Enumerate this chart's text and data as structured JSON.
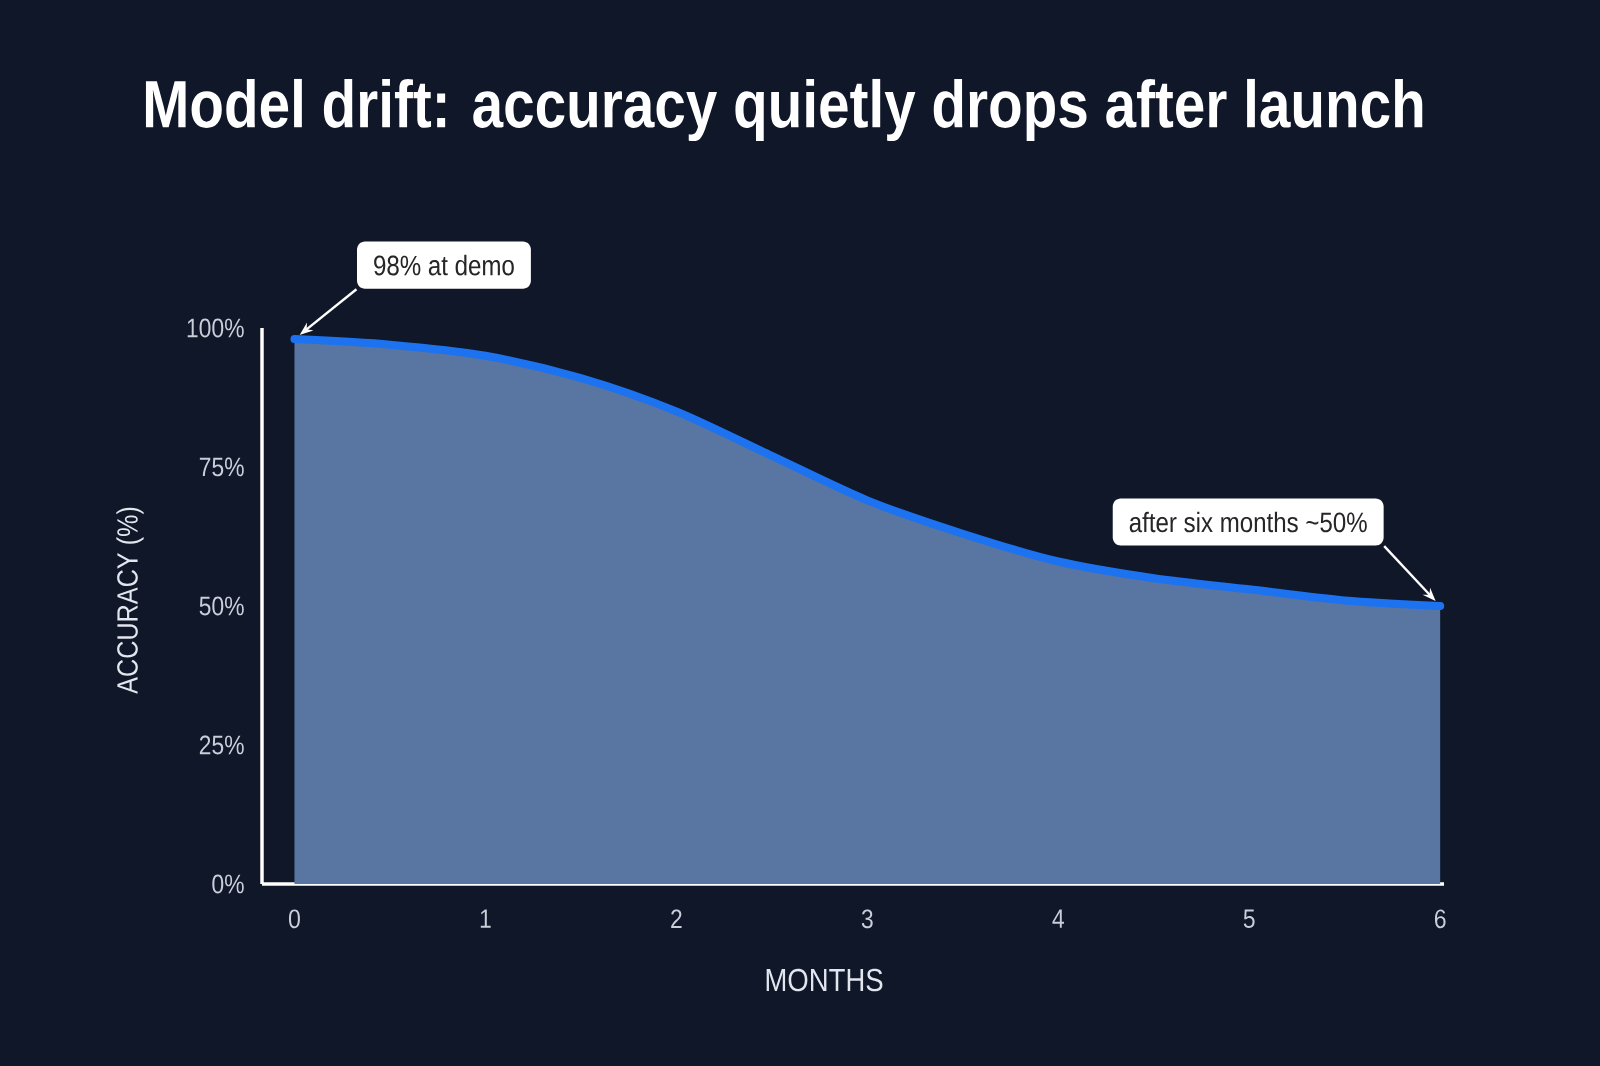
{
  "chart_data": {
    "type": "area",
    "title": "Model drift: accuracy quietly drops after launch",
    "xlabel": "MONTHS",
    "ylabel": "ACCURACY (%)",
    "x": [
      0,
      0.5,
      1,
      1.5,
      2,
      2.5,
      3,
      3.5,
      4,
      4.5,
      5,
      5.5,
      6
    ],
    "values": [
      98,
      97,
      95,
      91,
      85,
      77,
      69,
      63,
      58,
      55,
      53,
      51,
      50
    ],
    "color": "#1d72f0",
    "xlim": [
      -0.17,
      6.02
    ],
    "ylim": [
      0,
      100
    ],
    "xticks": [
      0,
      1,
      2,
      3,
      4,
      5,
      6
    ],
    "yticks": [
      {
        "value": 0,
        "label": "0%"
      },
      {
        "value": 25,
        "label": "25%"
      },
      {
        "value": 50,
        "label": "50%"
      },
      {
        "value": 75,
        "label": "75%"
      },
      {
        "value": 100,
        "label": "100%"
      }
    ],
    "annotations": [
      {
        "text": "98% at demo",
        "x": 0,
        "y": 98
      },
      {
        "text": "after six months ~50%",
        "x": 6,
        "y": 50
      }
    ]
  }
}
